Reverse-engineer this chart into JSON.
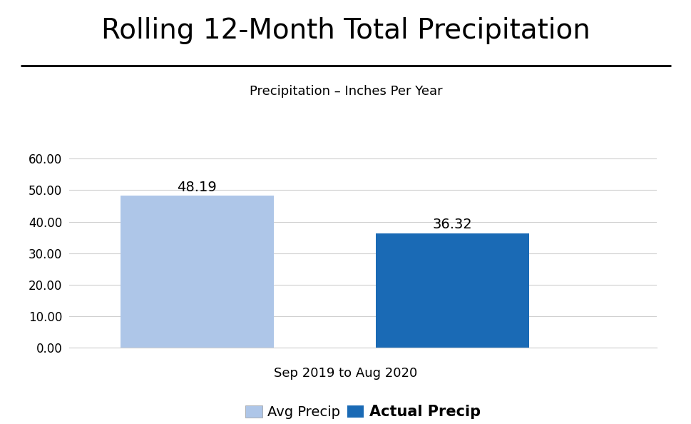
{
  "title": "Rolling 12-Month Total Precipitation",
  "subtitle": "Precipitation – Inches Per Year",
  "categories": [
    "Avg Precip",
    "Actual Precip"
  ],
  "values": [
    48.19,
    36.32
  ],
  "bar_light_color": "#aec6e8",
  "bar_dark_color": "#1a6ab5",
  "xlabel": "Sep 2019 to Aug 2020",
  "ylim": [
    0,
    70
  ],
  "yticks": [
    0.0,
    10.0,
    20.0,
    30.0,
    40.0,
    50.0,
    60.0
  ],
  "background_color": "#ffffff",
  "title_fontsize": 28,
  "subtitle_fontsize": 13,
  "xlabel_fontsize": 13,
  "legend_fontsize": 14,
  "bar_label_fontsize": 14,
  "tick_fontsize": 12,
  "grid_color": "#d0d0d0",
  "legend_labels": [
    "Avg Precip",
    "Actual Precip"
  ]
}
